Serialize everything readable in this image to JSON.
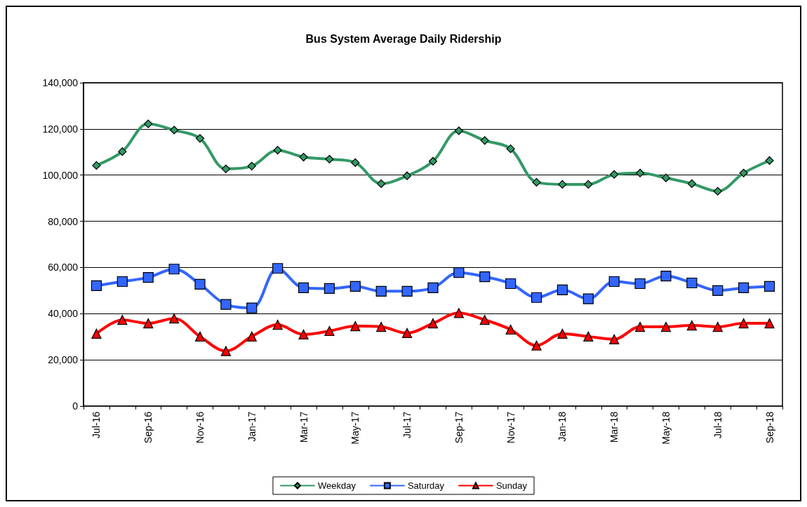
{
  "chart_data": {
    "type": "line",
    "title": "Bus System Average Daily Ridership",
    "categories": [
      "Jul-16",
      null,
      "Sep-16",
      null,
      "Nov-16",
      null,
      "Jan-17",
      null,
      "Mar-17",
      null,
      "May-17",
      null,
      "Jul-17",
      null,
      "Sep-17",
      null,
      "Nov-17",
      null,
      "Jan-18",
      null,
      "Mar-18",
      null,
      "May-18",
      null,
      "Jul-18",
      null,
      "Sep-18"
    ],
    "series": [
      {
        "name": "Weekday",
        "color": "#339966",
        "marker": "diamond",
        "values": [
          104200,
          110200,
          122200,
          119500,
          115900,
          102700,
          103900,
          110800,
          107800,
          106900,
          105400,
          96300,
          99700,
          106000,
          119200,
          115000,
          111400,
          96900,
          96000,
          96000,
          100300,
          100900,
          98800,
          96300,
          93000,
          100900,
          106300
        ]
      },
      {
        "name": "Saturday",
        "color": "#3366ff",
        "marker": "square",
        "values": [
          52100,
          53900,
          55700,
          59300,
          52700,
          44000,
          42500,
          59600,
          51200,
          50900,
          51800,
          49700,
          49700,
          51200,
          57800,
          56000,
          53000,
          47000,
          50300,
          46400,
          53900,
          53000,
          56300,
          53300,
          50000,
          51200,
          51800
        ]
      },
      {
        "name": "Sunday",
        "color": "#ff0000",
        "marker": "triangle",
        "values": [
          31300,
          37300,
          35800,
          37900,
          30100,
          23800,
          30100,
          35200,
          31000,
          32500,
          34600,
          34300,
          31600,
          35800,
          40300,
          37300,
          33100,
          26200,
          31300,
          30100,
          28900,
          34300,
          34300,
          34900,
          34300,
          35800,
          35800
        ]
      }
    ],
    "ylim": [
      0,
      140000
    ],
    "yticks": [
      0,
      {
        "value": 20000,
        "label": "20,000"
      },
      {
        "value": 40000,
        "label": "40,000"
      },
      {
        "value": 60000,
        "label": "60,000"
      },
      {
        "value": 80000,
        "label": "80,000"
      },
      {
        "value": 100000,
        "label": "100,000"
      },
      {
        "value": 120000,
        "label": "120,000"
      },
      {
        "value": 140000,
        "label": "140,000"
      }
    ],
    "grid": "y",
    "legend": "bottom"
  }
}
